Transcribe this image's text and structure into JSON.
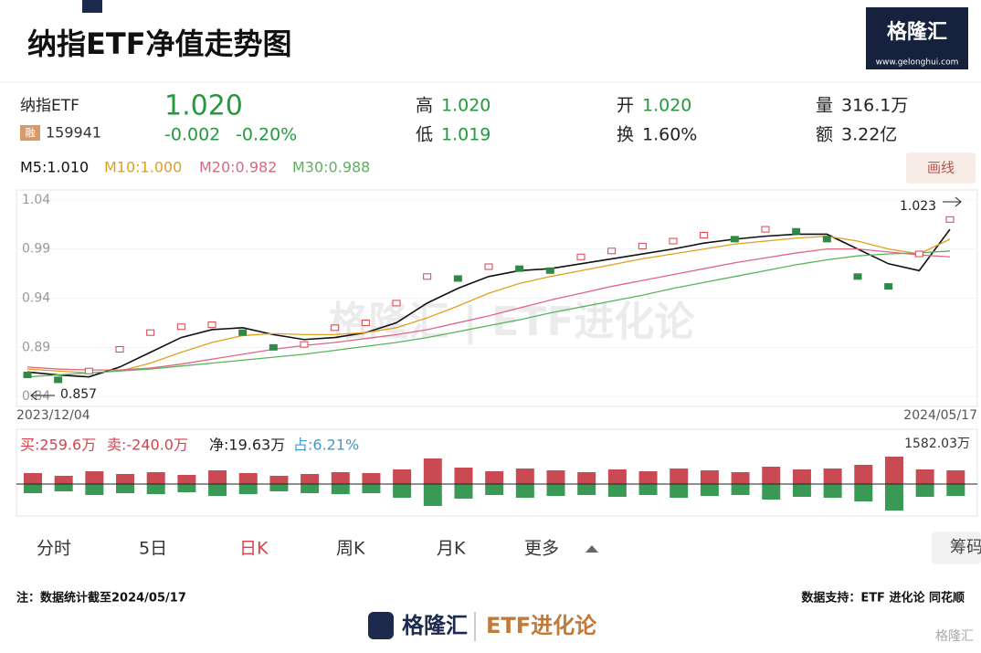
{
  "header": {
    "title": "纳指ETF净值走势图",
    "logo": "格隆汇",
    "logo_url": "www.gelonghui.com"
  },
  "quote": {
    "name": "纳指ETF",
    "tag": "融",
    "code": "159941",
    "price": "1.020",
    "change": "-0.002",
    "change_pct": "-0.20%",
    "stats": [
      {
        "label": "高",
        "value": "1.020"
      },
      {
        "label": "低",
        "value": "1.019"
      },
      {
        "label": "开",
        "value": "1.020"
      },
      {
        "label": "换",
        "value": "1.60%"
      },
      {
        "label": "量",
        "value": "316.1万"
      },
      {
        "label": "额",
        "value": "3.22亿"
      }
    ]
  },
  "ma_legend": [
    "M5:1.010",
    "M10:1.000",
    "M20:0.982",
    "M30:0.988"
  ],
  "draw_button": "画线",
  "chart_data": {
    "type": "line",
    "categories": [
      "2023/12/04",
      null,
      null,
      null,
      null,
      null,
      null,
      null,
      null,
      null,
      null,
      null,
      null,
      null,
      null,
      null,
      null,
      null,
      null,
      null,
      null,
      null,
      null,
      null,
      null,
      null,
      null,
      null,
      null,
      null,
      "2024/05/17"
    ],
    "series": [
      {
        "color": "#d8414a",
        "values": [
          0.862,
          0.857,
          0.866,
          0.888,
          0.905,
          0.911,
          0.913,
          0.905,
          0.89,
          0.893,
          0.91,
          0.915,
          0.935,
          0.962,
          0.96,
          0.972,
          0.97,
          0.968,
          0.982,
          0.988,
          0.993,
          0.998,
          1.004,
          1.0,
          1.01,
          1.008,
          1.0,
          0.962,
          0.952,
          0.985,
          1.02
        ]
      },
      {
        "color": "#111111",
        "values": [
          0.865,
          0.862,
          0.86,
          0.87,
          0.885,
          0.9,
          0.908,
          0.91,
          0.903,
          0.898,
          0.9,
          0.905,
          0.915,
          0.935,
          0.95,
          0.962,
          0.968,
          0.97,
          0.975,
          0.98,
          0.985,
          0.99,
          0.996,
          1.0,
          1.003,
          1.005,
          1.005,
          0.99,
          0.975,
          0.968,
          1.01
        ]
      },
      {
        "color": "#e0a020",
        "values": [
          0.868,
          0.866,
          0.864,
          0.866,
          0.874,
          0.885,
          0.895,
          0.902,
          0.904,
          0.903,
          0.903,
          0.905,
          0.91,
          0.92,
          0.932,
          0.945,
          0.955,
          0.962,
          0.968,
          0.974,
          0.98,
          0.985,
          0.99,
          0.995,
          0.998,
          1.001,
          1.003,
          0.998,
          0.99,
          0.985,
          1.0
        ]
      },
      {
        "color": "#e06585",
        "values": [
          0.87,
          0.868,
          0.867,
          0.867,
          0.869,
          0.873,
          0.878,
          0.883,
          0.888,
          0.892,
          0.895,
          0.899,
          0.903,
          0.908,
          0.915,
          0.922,
          0.93,
          0.938,
          0.945,
          0.952,
          0.958,
          0.964,
          0.97,
          0.976,
          0.981,
          0.986,
          0.99,
          0.99,
          0.987,
          0.984,
          0.982
        ]
      },
      {
        "color": "#5bb35b",
        "values": [
          0.86,
          0.862,
          0.864,
          0.866,
          0.868,
          0.871,
          0.874,
          0.877,
          0.88,
          0.883,
          0.887,
          0.891,
          0.895,
          0.9,
          0.906,
          0.912,
          0.918,
          0.925,
          0.931,
          0.937,
          0.943,
          0.95,
          0.956,
          0.962,
          0.968,
          0.974,
          0.979,
          0.983,
          0.985,
          0.986,
          0.988
        ]
      }
    ],
    "ylim": [
      0.83,
      1.05
    ],
    "yticks": [
      0.84,
      0.89,
      0.94,
      0.99,
      1.04
    ],
    "annotations": [
      "1.023",
      "0.857"
    ],
    "volume": {
      "buy": [
        120,
        90,
        140,
        110,
        130,
        100,
        150,
        120,
        90,
        110,
        130,
        120,
        160,
        280,
        180,
        140,
        170,
        150,
        130,
        160,
        140,
        170,
        150,
        130,
        190,
        160,
        170,
        210,
        300,
        160,
        150
      ],
      "sell": [
        100,
        80,
        120,
        100,
        110,
        90,
        130,
        110,
        80,
        100,
        110,
        100,
        150,
        240,
        160,
        120,
        150,
        130,
        120,
        140,
        120,
        150,
        130,
        120,
        170,
        140,
        150,
        190,
        290,
        140,
        130
      ],
      "ylim": [
        0,
        340
      ],
      "max_label": "1582.03万",
      "summary": [
        "买:259.6万",
        "卖:-240.0万",
        "净:19.63万",
        "占:6.21%"
      ]
    }
  },
  "tabs": [
    "分时",
    "5日",
    "日K",
    "周K",
    "月K",
    "更多"
  ],
  "chips": "筹码",
  "footer": {
    "note": "注：数据统计截至2024/05/17",
    "source": "数据支持：ETF 进化论 同花顺",
    "brand": "格隆汇",
    "brand2": "ETF进化论",
    "corner": "格隆汇"
  }
}
